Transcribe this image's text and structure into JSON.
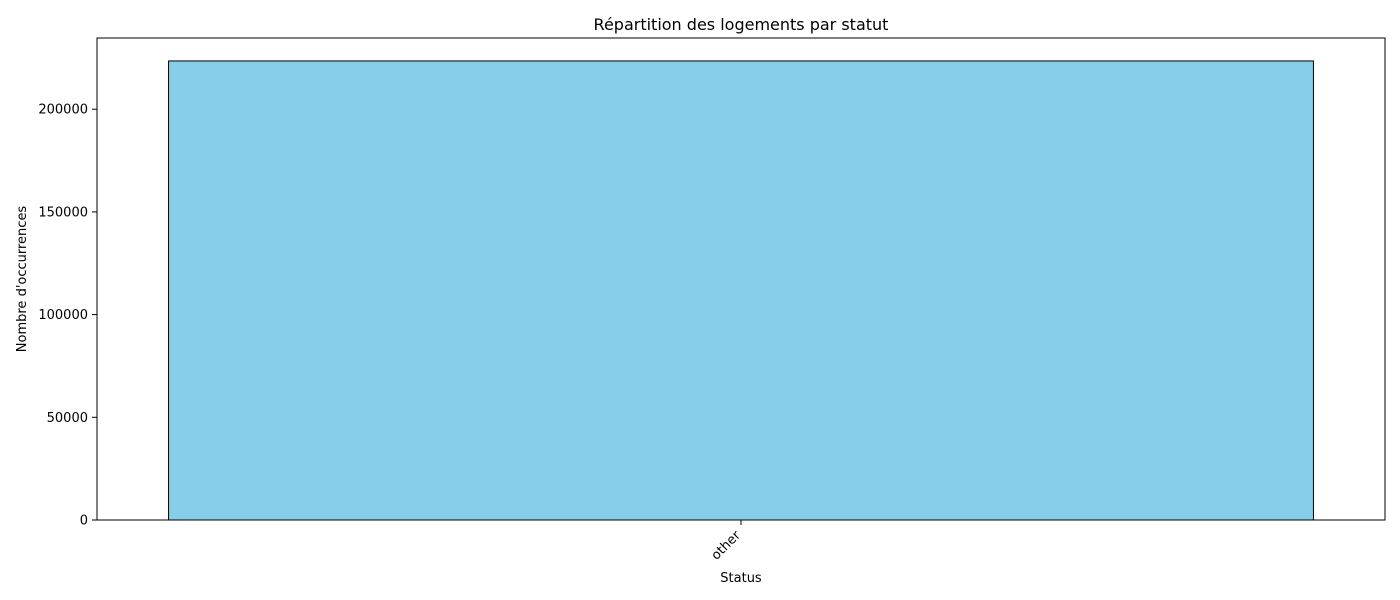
{
  "chart_data": {
    "type": "bar",
    "title": "Répartition des logements par statut",
    "xlabel": "Status",
    "ylabel": "Nombre d'occurrences",
    "categories": [
      "other"
    ],
    "values": [
      223500
    ],
    "ylim": [
      0,
      234675
    ],
    "yticks": [
      0,
      50000,
      100000,
      150000,
      200000
    ],
    "grid": false,
    "legend": "none",
    "bar_color": "#87CEEB",
    "bar_edge_color": "#000000"
  }
}
